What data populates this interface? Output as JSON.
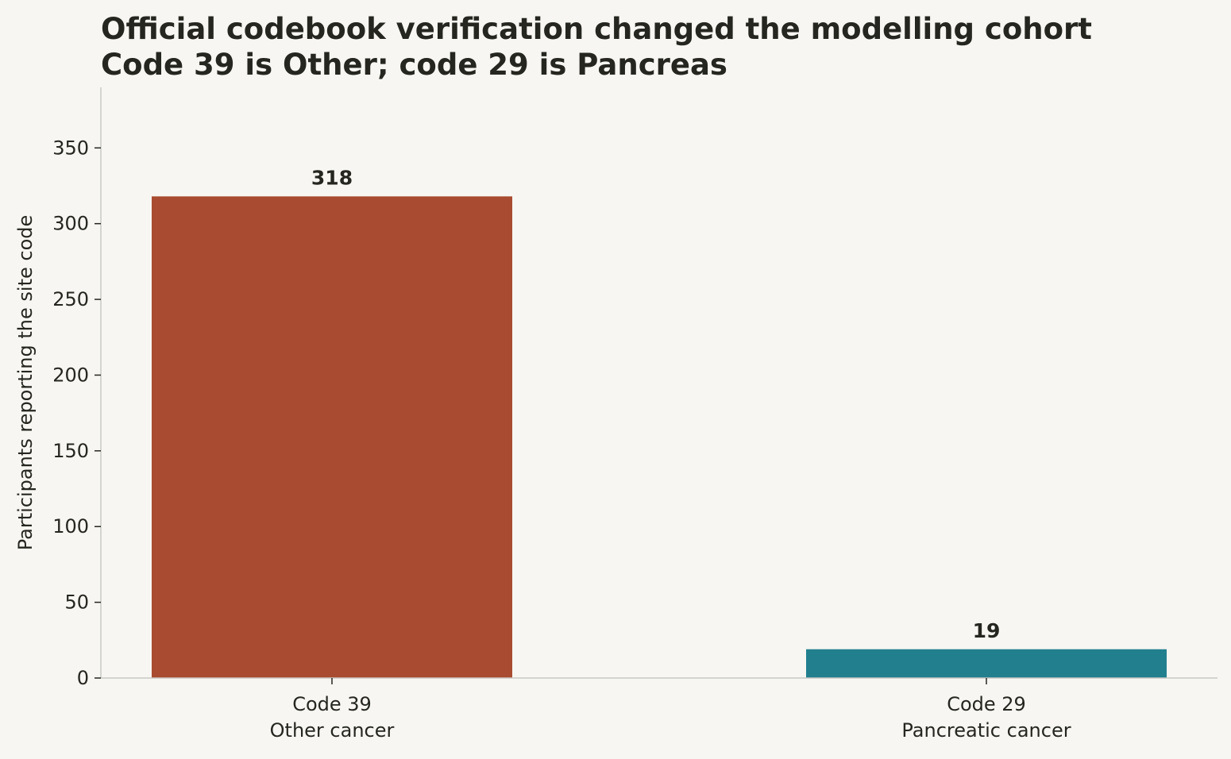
{
  "chart_data": {
    "type": "bar",
    "title": "Official codebook verification changed the modelling cohort",
    "subtitle": "Code 39 is Other; code 29 is Pancreas",
    "ylabel": "Participants reporting the site code",
    "xlabel": "",
    "categories": [
      "Code 39\nOther cancer",
      "Code 29\nPancreatic cancer"
    ],
    "category_lines": [
      [
        "Code 39",
        "Other cancer"
      ],
      [
        "Code 29",
        "Pancreatic cancer"
      ]
    ],
    "values": [
      318,
      19
    ],
    "value_labels": [
      "318",
      "19"
    ],
    "bar_colors": [
      "#a84b30",
      "#227f8e"
    ],
    "ylim": [
      0,
      390
    ],
    "yticks": [
      0,
      50,
      100,
      150,
      200,
      250,
      300,
      350
    ],
    "ytick_labels": [
      "0",
      "50",
      "100",
      "150",
      "200",
      "250",
      "300",
      "350"
    ],
    "grid": false,
    "legend": "none"
  }
}
